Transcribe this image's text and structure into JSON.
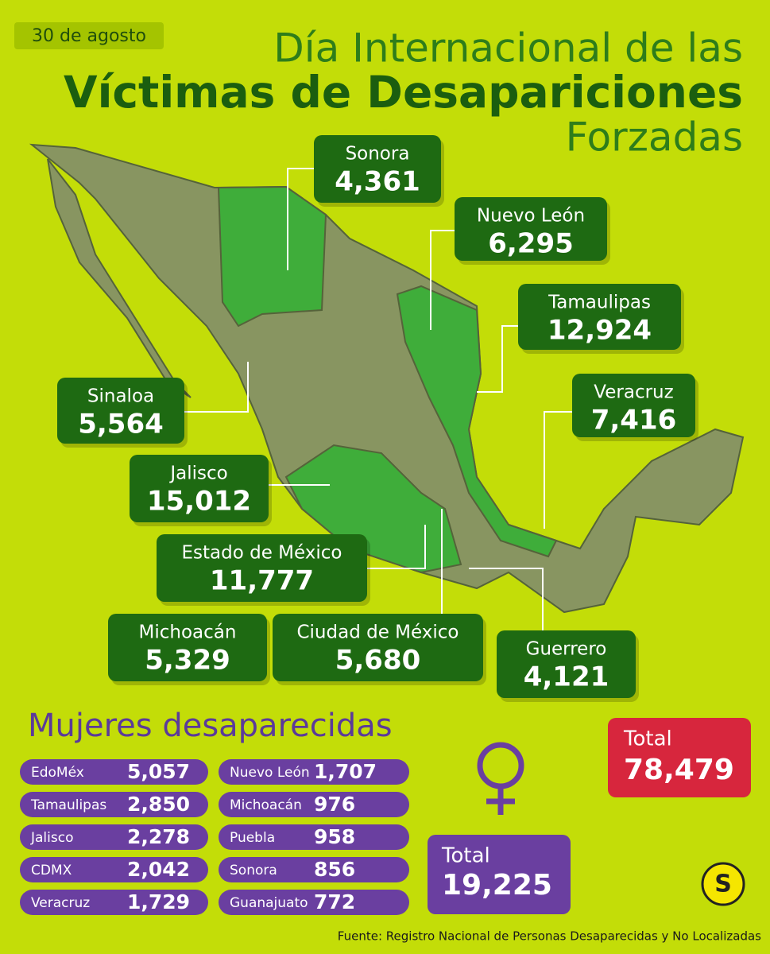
{
  "header": {
    "date": "30 de agosto",
    "title_line1": "Día Internacional de las",
    "title_line2": "Víctimas de Desapariciones",
    "title_line3": "Forzadas"
  },
  "states": [
    {
      "name": "Sonora",
      "value": "4,361"
    },
    {
      "name": "Nuevo León",
      "value": "6,295"
    },
    {
      "name": "Tamaulipas",
      "value": "12,924"
    },
    {
      "name": "Veracruz",
      "value": "7,416"
    },
    {
      "name": "Sinaloa",
      "value": "5,564"
    },
    {
      "name": "Jalisco",
      "value": "15,012"
    },
    {
      "name": "Estado de México",
      "value": "11,777"
    },
    {
      "name": "Michoacán",
      "value": "5,329"
    },
    {
      "name": "Ciudad de México",
      "value": "5,680"
    },
    {
      "name": "Guerrero",
      "value": "4,121"
    }
  ],
  "total": {
    "label": "Total",
    "value": "78,479"
  },
  "women": {
    "title": "Mujeres desaparecidas",
    "rows": [
      {
        "name": "EdoMéx",
        "value": "5,057"
      },
      {
        "name": "Tamaulipas",
        "value": "2,850"
      },
      {
        "name": "Jalisco",
        "value": "2,278"
      },
      {
        "name": "CDMX",
        "value": "2,042"
      },
      {
        "name": "Veracruz",
        "value": "1,729"
      },
      {
        "name": "Nuevo León",
        "value": "1,707"
      },
      {
        "name": "Michoacán",
        "value": "976"
      },
      {
        "name": "Puebla",
        "value": "958"
      },
      {
        "name": "Sonora",
        "value": "856"
      },
      {
        "name": "Guanajuato",
        "value": "772"
      }
    ],
    "total": {
      "label": "Total",
      "value": "19,225"
    }
  },
  "source": "Fuente: Registro Nacional de Personas Desaparecidas y No Localizadas"
}
